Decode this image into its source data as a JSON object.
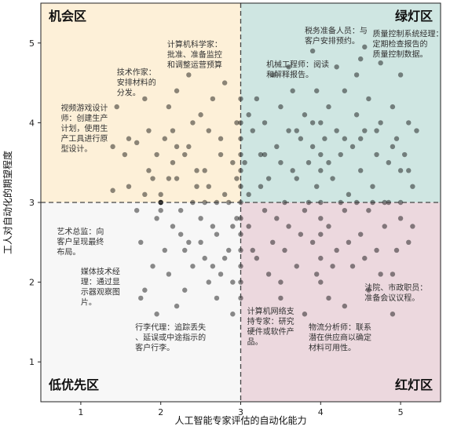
{
  "chart_data": {
    "type": "scatter",
    "xlabel": "人工智能专家评估的自动化能力",
    "ylabel": "工人对自动化的期望程度",
    "xlim": [
      0.5,
      5.5
    ],
    "ylim": [
      0.5,
      5.5
    ],
    "xticks": [
      "1",
      "2",
      "3",
      "4",
      "5"
    ],
    "yticks": [
      "1",
      "2",
      "3",
      "4",
      "5"
    ],
    "divider": {
      "x": 3,
      "y": 3
    },
    "grid": false,
    "zones": [
      {
        "name": "机会区",
        "color": "#fdf0d8",
        "quadrant": "top-left"
      },
      {
        "name": "绿灯区",
        "color": "#cfe6e2",
        "quadrant": "top-right"
      },
      {
        "name": "低优先区",
        "color": "#f7f7f7",
        "quadrant": "bottom-left"
      },
      {
        "name": "红灯区",
        "color": "#ecd8de",
        "quadrant": "bottom-right"
      }
    ],
    "annotations": [
      {
        "lines": [
          "机会区"
        ]
      },
      {
        "lines": [
          "计算机科学家：",
          "批准、准备监控",
          "和调整运营预算"
        ],
        "x": 2.08,
        "y": 4.95
      },
      {
        "lines": [
          "技术作家：",
          "安排材料的",
          "分发。"
        ],
        "x": 1.45,
        "y": 4.6
      },
      {
        "lines": [
          "视频游戏设计",
          "师：创建生产",
          "计划，使用生",
          "产工具进行原",
          "型设计。"
        ],
        "x": 0.75,
        "y": 4.15
      },
      {
        "lines": [
          "税务准备人员：与",
          "客户安排预约。"
        ],
        "x": 3.8,
        "y": 5.12
      },
      {
        "lines": [
          "质量控制系统经理：",
          "定期检查报告的",
          "质量控制数据。"
        ],
        "x": 4.65,
        "y": 5.08
      },
      {
        "lines": [
          "机械工程师：阅读",
          "和解释报告。"
        ],
        "x": 3.32,
        "y": 4.7
      },
      {
        "lines": [
          "艺术总监：向",
          "客户呈现最终",
          "布局。"
        ],
        "x": 0.7,
        "y": 2.6
      },
      {
        "lines": [
          "媒体技术经",
          "理：通过显",
          "示器观察图",
          "片。"
        ],
        "x": 1.0,
        "y": 2.1
      },
      {
        "lines": [
          "行李代理：追踪丢失",
          "、延误或中途指示的",
          "客户行李。"
        ],
        "x": 1.68,
        "y": 1.4
      },
      {
        "lines": [
          "计算机网络支",
          "持专家：研究",
          "硬件或软件产",
          "品。"
        ],
        "x": 3.08,
        "y": 1.6
      },
      {
        "lines": [
          "物流分析师：联系",
          "潜在供应商以确定",
          "材料可用性。"
        ],
        "x": 3.85,
        "y": 1.4
      },
      {
        "lines": [
          "法院、市政职员：",
          "准备会议议程。"
        ],
        "x": 4.55,
        "y": 1.9
      }
    ],
    "point_color": "#000000",
    "point_opacity": 0.45,
    "points": [
      [
        1.45,
        4.2
      ],
      [
        1.7,
        3.75
      ],
      [
        1.55,
        3.6
      ],
      [
        1.85,
        3.9
      ],
      [
        1.9,
        3.3
      ],
      [
        1.95,
        3.6
      ],
      [
        1.8,
        3.1
      ],
      [
        1.6,
        3.2
      ],
      [
        1.4,
        3.15
      ],
      [
        1.75,
        2.5
      ],
      [
        1.95,
        2.8
      ],
      [
        1.9,
        2.2
      ],
      [
        1.8,
        1.9
      ],
      [
        1.75,
        1.8
      ],
      [
        1.95,
        1.6
      ],
      [
        1.7,
        2.9
      ],
      [
        1.85,
        3.4
      ],
      [
        1.4,
        3.7
      ],
      [
        1.6,
        3.8
      ],
      [
        1.8,
        4.3
      ],
      [
        2.0,
        3.0
      ],
      [
        2.0,
        3.0
      ],
      [
        2.0,
        3.0
      ],
      [
        2.0,
        3.1
      ],
      [
        2.0,
        2.9
      ],
      [
        2.05,
        3.8
      ],
      [
        2.1,
        4.2
      ],
      [
        2.15,
        3.5
      ],
      [
        2.2,
        3.3
      ],
      [
        2.25,
        2.6
      ],
      [
        2.3,
        2.4
      ],
      [
        2.35,
        3.7
      ],
      [
        2.4,
        4.0
      ],
      [
        2.45,
        3.2
      ],
      [
        2.5,
        2.8
      ],
      [
        2.55,
        3.4
      ],
      [
        2.6,
        3.9
      ],
      [
        2.65,
        2.2
      ],
      [
        2.7,
        2.6
      ],
      [
        2.75,
        3.6
      ],
      [
        2.8,
        3.1
      ],
      [
        2.85,
        2.4
      ],
      [
        2.9,
        2.0
      ],
      [
        2.95,
        3.3
      ],
      [
        2.1,
        2.1
      ],
      [
        2.15,
        2.7
      ],
      [
        2.2,
        1.7
      ],
      [
        2.3,
        1.9
      ],
      [
        2.4,
        2.2
      ],
      [
        2.5,
        2.5
      ],
      [
        2.6,
        2.0
      ],
      [
        2.7,
        1.8
      ],
      [
        2.8,
        2.3
      ],
      [
        2.9,
        2.7
      ],
      [
        2.2,
        4.4
      ],
      [
        2.35,
        4.6
      ],
      [
        2.5,
        4.1
      ],
      [
        2.65,
        4.3
      ],
      [
        2.8,
        4.5
      ],
      [
        2.95,
        4.0
      ],
      [
        2.15,
        3.9
      ],
      [
        2.3,
        3.6
      ],
      [
        2.45,
        3.4
      ],
      [
        2.6,
        3.2
      ],
      [
        2.75,
        3.8
      ],
      [
        2.9,
        3.5
      ],
      [
        2.05,
        2.4
      ],
      [
        2.25,
        2.9
      ],
      [
        2.4,
        3.0
      ],
      [
        2.55,
        3.0
      ],
      [
        2.7,
        3.0
      ],
      [
        2.85,
        3.0
      ],
      [
        2.95,
        2.8
      ],
      [
        2.35,
        2.5
      ],
      [
        2.65,
        2.7
      ],
      [
        2.1,
        3.3
      ],
      [
        2.2,
        3.7
      ],
      [
        2.55,
        2.3
      ],
      [
        2.75,
        2.1
      ],
      [
        2.9,
        1.6
      ],
      [
        3.0,
        4.0
      ],
      [
        3.0,
        3.8
      ],
      [
        3.0,
        3.6
      ],
      [
        3.0,
        3.4
      ],
      [
        3.0,
        3.2
      ],
      [
        3.0,
        3.0
      ],
      [
        3.0,
        2.8
      ],
      [
        3.0,
        2.6
      ],
      [
        3.0,
        2.4
      ],
      [
        3.0,
        2.2
      ],
      [
        3.0,
        2.0
      ],
      [
        3.0,
        1.8
      ],
      [
        3.0,
        4.3
      ],
      [
        3.05,
        3.5
      ],
      [
        3.1,
        3.1
      ],
      [
        3.1,
        2.7
      ],
      [
        3.15,
        3.9
      ],
      [
        3.2,
        4.3
      ],
      [
        3.2,
        2.3
      ],
      [
        3.25,
        3.6
      ],
      [
        3.3,
        4.0
      ],
      [
        3.3,
        2.9
      ],
      [
        3.35,
        3.3
      ],
      [
        3.4,
        4.6
      ],
      [
        3.4,
        2.5
      ],
      [
        3.45,
        3.7
      ],
      [
        3.5,
        4.2
      ],
      [
        3.5,
        2.0
      ],
      [
        3.55,
        3.0
      ],
      [
        3.6,
        3.9
      ],
      [
        3.6,
        2.7
      ],
      [
        3.65,
        4.4
      ],
      [
        3.7,
        3.3
      ],
      [
        3.7,
        2.2
      ],
      [
        3.75,
        3.8
      ],
      [
        3.8,
        4.1
      ],
      [
        3.8,
        2.9
      ],
      [
        3.85,
        3.5
      ],
      [
        3.9,
        4.0
      ],
      [
        3.9,
        2.5
      ],
      [
        3.95,
        3.2
      ],
      [
        3.95,
        4.4
      ],
      [
        4.0,
        4.0
      ],
      [
        4.0,
        3.0
      ],
      [
        4.0,
        2.8
      ],
      [
        4.0,
        2.6
      ],
      [
        4.0,
        3.6
      ],
      [
        4.0,
        3.4
      ],
      [
        4.0,
        2.3
      ],
      [
        4.0,
        2.0
      ],
      [
        4.05,
        3.8
      ],
      [
        4.1,
        4.2
      ],
      [
        4.1,
        2.7
      ],
      [
        4.15,
        3.3
      ],
      [
        4.2,
        3.9
      ],
      [
        4.2,
        2.4
      ],
      [
        4.25,
        3.6
      ],
      [
        4.3,
        4.4
      ],
      [
        4.3,
        2.9
      ],
      [
        4.35,
        3.1
      ],
      [
        4.4,
        3.7
      ],
      [
        4.4,
        2.2
      ],
      [
        4.45,
        4.1
      ],
      [
        4.5,
        3.4
      ],
      [
        4.5,
        2.6
      ],
      [
        4.55,
        3.9
      ],
      [
        4.6,
        4.3
      ],
      [
        4.6,
        2.9
      ],
      [
        4.65,
        3.2
      ],
      [
        4.7,
        3.6
      ],
      [
        4.7,
        2.4
      ],
      [
        4.75,
        4.0
      ],
      [
        4.8,
        3.0
      ],
      [
        4.8,
        2.7
      ],
      [
        4.85,
        3.5
      ],
      [
        4.9,
        4.2
      ],
      [
        4.9,
        2.1
      ],
      [
        4.95,
        3.8
      ],
      [
        5.0,
        3.4
      ],
      [
        5.0,
        3.0
      ],
      [
        5.0,
        2.8
      ],
      [
        5.05,
        3.6
      ],
      [
        5.1,
        4.0
      ],
      [
        5.1,
        2.5
      ],
      [
        5.15,
        3.2
      ],
      [
        5.2,
        3.9
      ],
      [
        4.3,
        1.7
      ],
      [
        4.6,
        1.9
      ],
      [
        4.1,
        1.8
      ],
      [
        4.9,
        1.6
      ],
      [
        3.5,
        1.8
      ],
      [
        3.8,
        1.6
      ],
      [
        4.45,
        4.6
      ],
      [
        4.55,
        4.95
      ],
      [
        4.5,
        4.8
      ],
      [
        4.2,
        4.7
      ],
      [
        3.6,
        4.7
      ],
      [
        3.9,
        4.9
      ],
      [
        4.75,
        4.75
      ],
      [
        5.0,
        4.6
      ],
      [
        3.25,
        3.2
      ],
      [
        3.45,
        2.8
      ],
      [
        3.65,
        3.4
      ],
      [
        3.85,
        3.0
      ],
      [
        4.25,
        3.0
      ],
      [
        4.45,
        3.0
      ],
      [
        4.65,
        3.0
      ],
      [
        4.85,
        3.0
      ],
      [
        3.15,
        2.4
      ],
      [
        3.35,
        2.1
      ],
      [
        3.55,
        2.4
      ],
      [
        3.75,
        2.6
      ],
      [
        3.95,
        2.1
      ],
      [
        4.15,
        2.2
      ],
      [
        4.35,
        2.5
      ],
      [
        4.55,
        2.3
      ],
      [
        4.75,
        2.1
      ],
      [
        4.95,
        2.4
      ],
      [
        5.15,
        2.7
      ],
      [
        3.1,
        4.1
      ],
      [
        3.3,
        3.6
      ],
      [
        3.5,
        3.5
      ],
      [
        3.7,
        3.9
      ],
      [
        3.9,
        3.7
      ],
      [
        4.1,
        3.5
      ],
      [
        4.3,
        3.8
      ],
      [
        4.5,
        3.8
      ],
      [
        4.7,
        3.9
      ],
      [
        4.9,
        3.7
      ],
      [
        5.1,
        3.4
      ]
    ]
  }
}
